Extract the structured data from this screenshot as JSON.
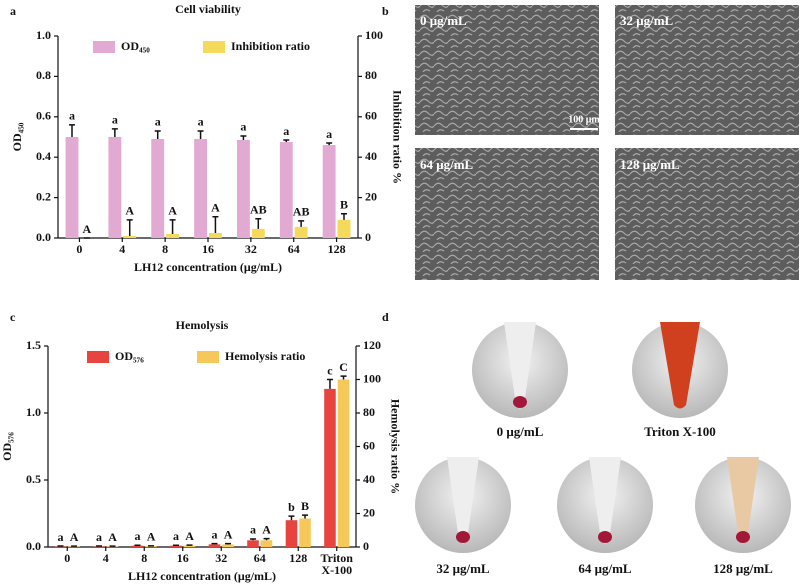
{
  "chart_data": [
    {
      "type": "bar",
      "title": "Cell viability",
      "xlabel": "LH12 concentration (μg/mL)",
      "ylabel": "OD₄₅₀",
      "y2label": "Inhibition ratio %",
      "categories": [
        "0",
        "4",
        "8",
        "16",
        "32",
        "64",
        "128"
      ],
      "ylim": [
        0,
        1
      ],
      "yticks": [
        {
          "value": 0,
          "label": "0.0"
        },
        0.2,
        0.4,
        0.6,
        0.8,
        {
          "value": 1,
          "label": "1.0"
        }
      ],
      "y2lim": [
        0,
        100
      ],
      "y2ticks": [
        0,
        20,
        40,
        60,
        80,
        100
      ],
      "series": [
        {
          "name": "OD₄₅₀",
          "color": "#e2a9d2",
          "values": [
            0.5,
            0.5,
            0.49,
            0.49,
            0.485,
            0.475,
            0.46
          ],
          "errors": [
            0.06,
            0.04,
            0.04,
            0.04,
            0.02,
            0.01,
            0.01
          ],
          "letters": [
            "a",
            "a",
            "a",
            "a",
            "a",
            "a",
            "a"
          ]
        },
        {
          "name": "Inhibition ratio",
          "color": "#f4d95a",
          "axis": "y2",
          "values": [
            0,
            1,
            2,
            2.5,
            4.5,
            5.5,
            9
          ],
          "errors": [
            0,
            8,
            7,
            8,
            5,
            3,
            3
          ],
          "letters": [
            "A",
            "A",
            "A",
            "A",
            "AB",
            "AB",
            "B"
          ]
        }
      ]
    },
    {
      "type": "bar",
      "title": "Hemolysis",
      "xlabel": "LH12 concentration (μg/mL)",
      "ylabel": "OD₅₇₆",
      "y2label": "Hemolysis ratio %",
      "categories": [
        "0",
        "4",
        "8",
        "16",
        "32",
        "64",
        "128",
        "Triton X-100"
      ],
      "ylim": [
        0,
        1.5
      ],
      "yticks": [
        {
          "value": 0,
          "label": "0.0"
        },
        0.5,
        {
          "value": 1,
          "label": "1.0"
        },
        1.5
      ],
      "y2lim": [
        0,
        120
      ],
      "y2ticks": [
        0,
        20,
        40,
        60,
        80,
        100,
        120
      ],
      "series": [
        {
          "name": "OD₅₇₆",
          "color": "#e8443f",
          "values": [
            0.005,
            0.005,
            0.01,
            0.01,
            0.02,
            0.05,
            0.2,
            1.18
          ],
          "errors": [
            0.002,
            0.002,
            0.003,
            0.003,
            0.005,
            0.01,
            0.03,
            0.07
          ],
          "letters": [
            "a",
            "a",
            "a",
            "a",
            "a",
            "a",
            "b",
            "c"
          ]
        },
        {
          "name": "Hemolysis ratio",
          "color": "#f6c85a",
          "axis": "y2",
          "values": [
            0.3,
            0.3,
            0.5,
            0.8,
            1.5,
            4,
            17,
            100
          ],
          "errors": [
            0.2,
            0.2,
            0.2,
            0.3,
            0.5,
            1,
            2,
            2
          ],
          "letters": [
            "A",
            "A",
            "A",
            "A",
            "A",
            "A",
            "B",
            "C"
          ]
        }
      ]
    }
  ],
  "panel_labels": [
    "a",
    "b",
    "c",
    "d"
  ],
  "micrographs": {
    "labels": [
      "0 μg/mL",
      "32 μg/mL",
      "64 μg/mL",
      "128 μg/mL"
    ],
    "scale_bar": "100 μm"
  },
  "tubes": {
    "labels": [
      "0 μg/mL",
      "Triton X-100",
      "32 μg/mL",
      "64 μg/mL",
      "128 μg/mL"
    ]
  }
}
